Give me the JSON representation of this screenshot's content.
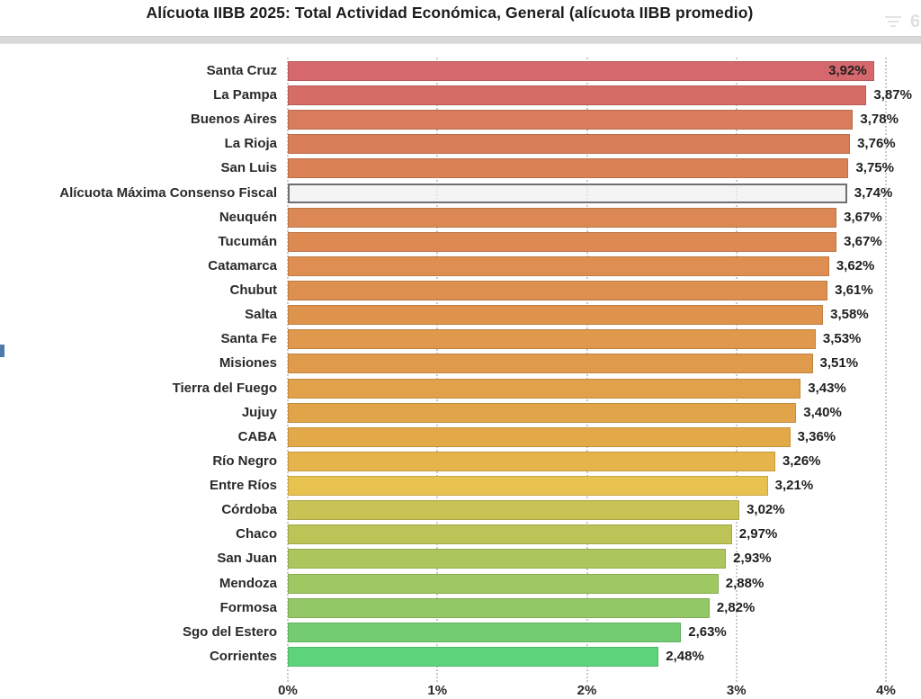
{
  "title": "Alícuota IIBB 2025: Total Actividad Económica, General (alícuota IIBB promedio)",
  "header": {
    "filter_icon": "filter-icon",
    "partial_glyph": "6"
  },
  "chart_data": {
    "type": "bar",
    "orientation": "horizontal",
    "title": "Alícuota IIBB 2025: Total Actividad Económica, General (alícuota IIBB promedio)",
    "xlabel": "",
    "ylabel": "",
    "xlim": [
      0,
      4
    ],
    "x_ticks": [
      "0%",
      "1%",
      "2%",
      "3%",
      "4%"
    ],
    "grid": "vertical-dotted",
    "legend": "none",
    "value_format": "comma-decimal-percent",
    "rows": [
      {
        "label": "Santa Cruz",
        "value": 3.92,
        "display": "3,92%",
        "color": "#d5686c",
        "label_inside": true,
        "reference": false
      },
      {
        "label": "La Pampa",
        "value": 3.87,
        "display": "3,87%",
        "color": "#d66c66",
        "label_inside": false,
        "reference": false
      },
      {
        "label": "Buenos Aires",
        "value": 3.78,
        "display": "3,78%",
        "color": "#d87c5c",
        "label_inside": false,
        "reference": false
      },
      {
        "label": "La Rioja",
        "value": 3.76,
        "display": "3,76%",
        "color": "#d97f58",
        "label_inside": false,
        "reference": false
      },
      {
        "label": "San Luis",
        "value": 3.75,
        "display": "3,75%",
        "color": "#da8156",
        "label_inside": false,
        "reference": false
      },
      {
        "label": "Alícuota Máxima Consenso Fiscal",
        "value": 3.74,
        "display": "3,74%",
        "color": "#f0f0f0",
        "label_inside": false,
        "reference": true
      },
      {
        "label": "Neuquén",
        "value": 3.67,
        "display": "3,67%",
        "color": "#db8854",
        "label_inside": false,
        "reference": false
      },
      {
        "label": "Tucumán",
        "value": 3.67,
        "display": "3,67%",
        "color": "#dc8a52",
        "label_inside": false,
        "reference": false
      },
      {
        "label": "Catamarca",
        "value": 3.62,
        "display": "3,62%",
        "color": "#dd8e50",
        "label_inside": false,
        "reference": false
      },
      {
        "label": "Chubut",
        "value": 3.61,
        "display": "3,61%",
        "color": "#dd8f4f",
        "label_inside": false,
        "reference": false
      },
      {
        "label": "Salta",
        "value": 3.58,
        "display": "3,58%",
        "color": "#de934d",
        "label_inside": false,
        "reference": false
      },
      {
        "label": "Santa Fe",
        "value": 3.53,
        "display": "3,53%",
        "color": "#e0984c",
        "label_inside": false,
        "reference": false
      },
      {
        "label": "Misiones",
        "value": 3.51,
        "display": "3,51%",
        "color": "#e09a4b",
        "label_inside": false,
        "reference": false
      },
      {
        "label": "Tierra del Fuego",
        "value": 3.43,
        "display": "3,43%",
        "color": "#e1a14a",
        "label_inside": false,
        "reference": false
      },
      {
        "label": "Jujuy",
        "value": 3.4,
        "display": "3,40%",
        "color": "#e2a449",
        "label_inside": false,
        "reference": false
      },
      {
        "label": "CABA",
        "value": 3.36,
        "display": "3,36%",
        "color": "#e3a948",
        "label_inside": false,
        "reference": false
      },
      {
        "label": "Río Negro",
        "value": 3.26,
        "display": "3,26%",
        "color": "#e5b44a",
        "label_inside": false,
        "reference": false
      },
      {
        "label": "Entre Ríos",
        "value": 3.21,
        "display": "3,21%",
        "color": "#e8c24e",
        "label_inside": false,
        "reference": false
      },
      {
        "label": "Córdoba",
        "value": 3.02,
        "display": "3,02%",
        "color": "#c8c354",
        "label_inside": false,
        "reference": false
      },
      {
        "label": "Chaco",
        "value": 2.97,
        "display": "2,97%",
        "color": "#bdc457",
        "label_inside": false,
        "reference": false
      },
      {
        "label": "San Juan",
        "value": 2.93,
        "display": "2,93%",
        "color": "#adc55d",
        "label_inside": false,
        "reference": false
      },
      {
        "label": "Mendoza",
        "value": 2.88,
        "display": "2,88%",
        "color": "#9fc762",
        "label_inside": false,
        "reference": false
      },
      {
        "label": "Formosa",
        "value": 2.82,
        "display": "2,82%",
        "color": "#93c866",
        "label_inside": false,
        "reference": false
      },
      {
        "label": "Sgo del Estero",
        "value": 2.63,
        "display": "2,63%",
        "color": "#73cc71",
        "label_inside": false,
        "reference": false
      },
      {
        "label": "Corrientes",
        "value": 2.48,
        "display": "2,48%",
        "color": "#5dd47b",
        "label_inside": false,
        "reference": false
      }
    ]
  },
  "colors": {
    "grid": "#c9c9c9",
    "reference_bar_border": "#6f6f6f",
    "divider": "#d9d9d9",
    "text": "#1f1f1f",
    "left_artifact": "#4d7ba7"
  }
}
